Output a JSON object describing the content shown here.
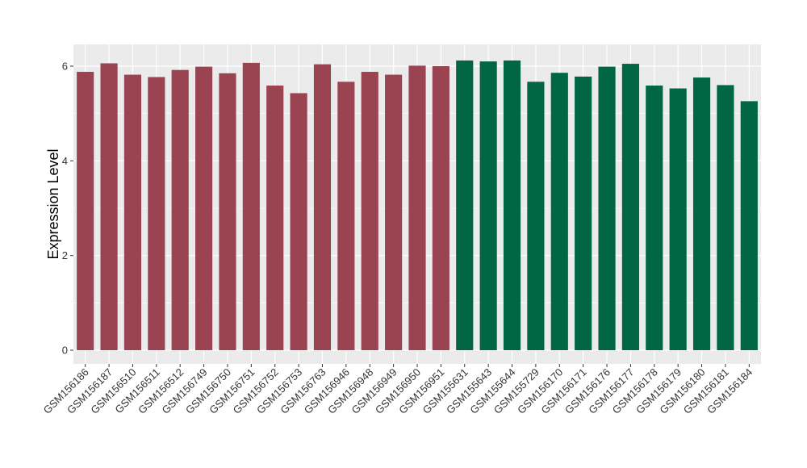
{
  "chart_data": {
    "type": "bar",
    "xlabel": "",
    "ylabel": "Expression Level",
    "ylim": [
      0,
      6.3
    ],
    "yticks": [
      0,
      2,
      4,
      6
    ],
    "grid": true,
    "categories": [
      "GSM156186",
      "GSM156187",
      "GSM156510",
      "GSM156511",
      "GSM156512",
      "GSM156749",
      "GSM156750",
      "GSM156751",
      "GSM156752",
      "GSM156753",
      "GSM156763",
      "GSM156946",
      "GSM156948",
      "GSM156949",
      "GSM156950",
      "GSM156951",
      "GSM155631",
      "GSM155643",
      "GSM155644",
      "GSM155729",
      "GSM156170",
      "GSM156171",
      "GSM156176",
      "GSM156177",
      "GSM156178",
      "GSM156179",
      "GSM156180",
      "GSM156181",
      "GSM156184"
    ],
    "values": [
      5.88,
      6.06,
      5.82,
      5.77,
      5.92,
      5.99,
      5.85,
      6.07,
      5.59,
      5.43,
      6.04,
      5.67,
      5.88,
      5.82,
      6.01,
      6.0,
      6.12,
      6.1,
      6.12,
      5.67,
      5.86,
      5.78,
      5.99,
      6.05,
      5.59,
      5.53,
      5.76,
      5.6,
      5.26
    ],
    "bar_colors": [
      "#9a4452",
      "#9a4452",
      "#9a4452",
      "#9a4452",
      "#9a4452",
      "#9a4452",
      "#9a4452",
      "#9a4452",
      "#9a4452",
      "#9a4452",
      "#9a4452",
      "#9a4452",
      "#9a4452",
      "#9a4452",
      "#9a4452",
      "#9a4452",
      "#006644",
      "#006644",
      "#006644",
      "#006644",
      "#006644",
      "#006644",
      "#006644",
      "#006644",
      "#006644",
      "#006644",
      "#006644",
      "#006644",
      "#006644"
    ],
    "panel_background": "#ebebeb",
    "grid_color": "#ffffff"
  }
}
